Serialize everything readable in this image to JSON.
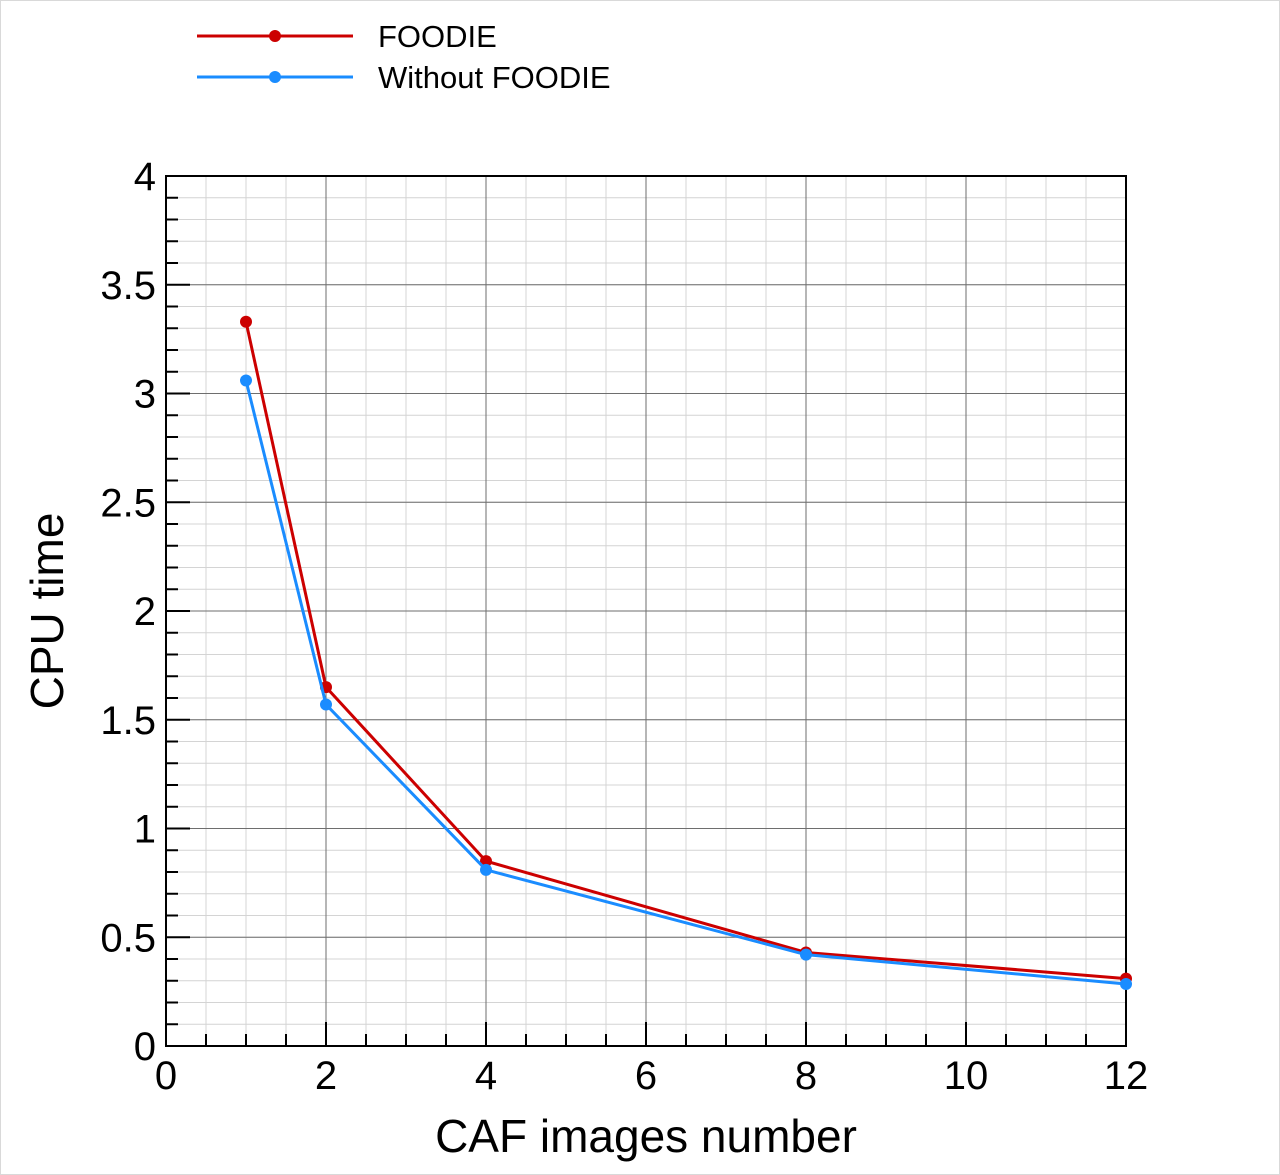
{
  "chart_data": {
    "type": "line",
    "title": "",
    "xlabel": "CAF images number",
    "ylabel": "CPU time",
    "xlim": [
      0,
      12
    ],
    "ylim": [
      0,
      4
    ],
    "xticks": [
      "0",
      "2",
      "4",
      "6",
      "8",
      "10",
      "12"
    ],
    "yticks": [
      "0",
      "0.5",
      "1",
      "1.5",
      "2",
      "2.5",
      "3",
      "3.5",
      "4"
    ],
    "grid": true,
    "legend_position": "top-left, above plot",
    "series": [
      {
        "name": "FOODIE",
        "color": "#cc0000",
        "marker": "circle",
        "x": [
          1,
          2,
          4,
          8,
          12
        ],
        "y": [
          3.33,
          1.65,
          0.85,
          0.43,
          0.31
        ]
      },
      {
        "name": "Without FOODIE",
        "color": "#1a8cff",
        "marker": "circle",
        "x": [
          1,
          2,
          4,
          8,
          12
        ],
        "y": [
          3.06,
          1.57,
          0.81,
          0.42,
          0.285
        ]
      }
    ]
  }
}
